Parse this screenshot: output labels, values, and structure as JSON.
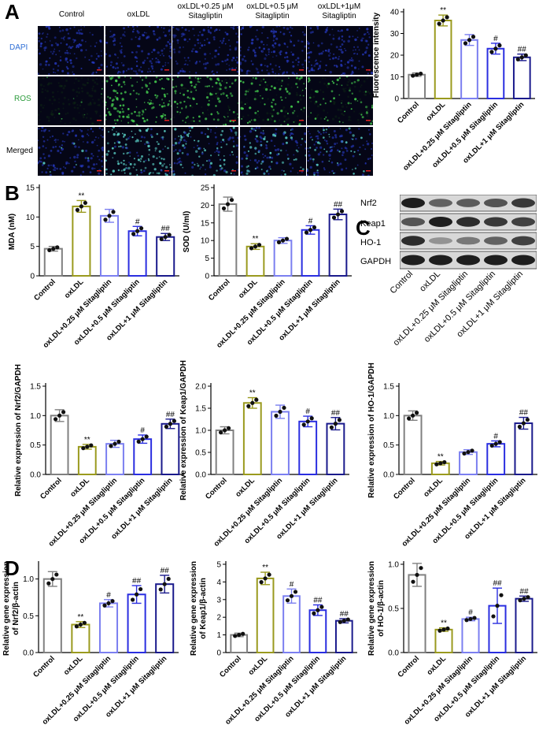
{
  "panels": {
    "A": "A",
    "B": "B",
    "C": "C",
    "D": "D"
  },
  "panelA": {
    "columns": [
      "Control",
      "oxLDL",
      "oxLDL+0.25 μM Sitagliptin",
      "oxLDL+0.5 μM Sitagliptin",
      "oxLDL+1μM Sitagliptin"
    ],
    "rows": [
      {
        "label": "DAPI",
        "color": "#2f6fd6"
      },
      {
        "label": "ROS",
        "color": "#2e9d3e"
      },
      {
        "label": "Merged",
        "color": "#000000"
      }
    ]
  },
  "panelC": {
    "bands": [
      "Nrf2",
      "Keap1",
      "HO-1",
      "GAPDH"
    ],
    "lanes": [
      "Control",
      "oxLDL",
      "oxLDL+0.25 μM Sitagliptin",
      "oxLDL+0.5 μM Sitagliptin",
      "oxLDL+1 μM Sitagliptin"
    ]
  },
  "colors": {
    "control": "#808080",
    "oxldl": "#9a9a1e",
    "s025": "#7b7ff0",
    "s05": "#2a2ee0",
    "s1": "#1a1a8c"
  },
  "chart_data": [
    {
      "id": "fluor",
      "type": "bar",
      "ylabel": "Fluorescence intensity",
      "ylim": [
        0,
        40
      ],
      "yticks": [
        0,
        10,
        20,
        30,
        40
      ],
      "categories": [
        "Control",
        "oxLDL",
        "oxLDL+0.25 μM Sitagliptin",
        "oxLDL+0.5 μM Sitagliptin",
        "oxLDL+1 μM Sitagliptin"
      ],
      "values": [
        11,
        36,
        27,
        23,
        19
      ],
      "errors": [
        0.8,
        2.5,
        2.5,
        2.5,
        1.5
      ],
      "annotations": [
        "",
        "**",
        "",
        "#",
        "##"
      ]
    },
    {
      "id": "mda",
      "type": "bar",
      "ylabel": "MDA (nM)",
      "ylim": [
        0,
        15
      ],
      "yticks": [
        0,
        5,
        10,
        15
      ],
      "categories": [
        "Control",
        "oxLDL",
        "oxLDL+0.25 μM Sitagliptin",
        "oxLDL+0.5 μM Sitagliptin",
        "oxLDL+1 μM Sitagliptin"
      ],
      "values": [
        4.6,
        11.8,
        10.2,
        7.6,
        6.6
      ],
      "errors": [
        0.4,
        1.0,
        1.1,
        0.8,
        0.6
      ],
      "annotations": [
        "",
        "**",
        "",
        "#",
        "##"
      ]
    },
    {
      "id": "sod",
      "type": "bar",
      "ylabel": "SOD (U/ml)",
      "ylim": [
        0,
        25
      ],
      "yticks": [
        0,
        5,
        10,
        15,
        20,
        25
      ],
      "categories": [
        "Control",
        "oxLDL",
        "oxLDL+0.25 μM Sitagliptin",
        "oxLDL+0.5 μM Sitagliptin",
        "oxLDL+1 μM Sitagliptin"
      ],
      "values": [
        20.3,
        8.3,
        10.0,
        13.0,
        17.4
      ],
      "errors": [
        2.0,
        0.8,
        0.8,
        1.2,
        1.5
      ],
      "annotations": [
        "",
        "**",
        "",
        "#",
        "##"
      ]
    },
    {
      "id": "nrf2p",
      "type": "bar",
      "ylabel": "Relative expression of Nrf2/GAPDH",
      "ylim": [
        0,
        1.5
      ],
      "yticks": [
        0.0,
        0.5,
        1.0,
        1.5
      ],
      "categories": [
        "Control",
        "oxLDL",
        "oxLDL+0.25 μM Sitagliptin",
        "oxLDL+0.5 μM Sitagliptin",
        "oxLDL+1 μM Sitagliptin"
      ],
      "values": [
        1.0,
        0.47,
        0.52,
        0.6,
        0.86
      ],
      "errors": [
        0.1,
        0.04,
        0.06,
        0.07,
        0.08
      ],
      "annotations": [
        "",
        "**",
        "",
        "#",
        "##"
      ]
    },
    {
      "id": "keap1p",
      "type": "bar",
      "ylabel": "Relative expression of Keap1/GAPDH",
      "ylim": [
        0,
        2.0
      ],
      "yticks": [
        0.0,
        0.5,
        1.0,
        1.5,
        2.0
      ],
      "categories": [
        "Control",
        "oxLDL",
        "oxLDL+0.25 μM Sitagliptin",
        "oxLDL+0.5 μM Sitagliptin",
        "oxLDL+1 μM Sitagliptin"
      ],
      "values": [
        1.0,
        1.62,
        1.42,
        1.2,
        1.15
      ],
      "errors": [
        0.08,
        0.12,
        0.15,
        0.12,
        0.14
      ],
      "annotations": [
        "",
        "**",
        "",
        "#",
        "##"
      ]
    },
    {
      "id": "ho1p",
      "type": "bar",
      "ylabel": "Relative expression of HO-1/GAPDH",
      "ylim": [
        0,
        1.5
      ],
      "yticks": [
        0.0,
        0.5,
        1.0,
        1.5
      ],
      "categories": [
        "Control",
        "oxLDL",
        "oxLDL+0.25 μM Sitagliptin",
        "oxLDL+0.5 μM Sitagliptin",
        "oxLDL+1 μM Sitagliptin"
      ],
      "values": [
        1.0,
        0.19,
        0.38,
        0.52,
        0.87
      ],
      "errors": [
        0.08,
        0.03,
        0.04,
        0.05,
        0.1
      ],
      "annotations": [
        "",
        "**",
        "",
        "#",
        "##"
      ]
    },
    {
      "id": "nrf2g",
      "type": "bar",
      "ylabel": "Relative gene expression of Nrf2/β-actin",
      "ylim": [
        0,
        1.2
      ],
      "yticks": [
        0.0,
        0.5,
        1.0
      ],
      "categories": [
        "Control",
        "oxLDL",
        "oxLDL+0.25 μM Sitagliptin",
        "oxLDL+0.5 μM Sitagliptin",
        "oxLDL+1 μM Sitagliptin"
      ],
      "values": [
        1.0,
        0.38,
        0.67,
        0.79,
        0.93
      ],
      "errors": [
        0.1,
        0.04,
        0.05,
        0.12,
        0.12
      ],
      "annotations": [
        "",
        "**",
        "#",
        "##",
        "##"
      ]
    },
    {
      "id": "keap1g",
      "type": "bar",
      "ylabel": "Relative gene expression of Keap1/β-actin",
      "ylim": [
        0,
        5
      ],
      "yticks": [
        0,
        1,
        2,
        3,
        4,
        5
      ],
      "categories": [
        "Control",
        "oxLDL",
        "oxLDL+0.25 μM Sitagliptin",
        "oxLDL+0.5 μM Sitagliptin",
        "oxLDL+1 μM Sitagliptin"
      ],
      "values": [
        1.0,
        4.2,
        3.2,
        2.4,
        1.8
      ],
      "errors": [
        0.1,
        0.35,
        0.4,
        0.3,
        0.12
      ],
      "annotations": [
        "",
        "**",
        "#",
        "##",
        "##"
      ]
    },
    {
      "id": "ho1g",
      "type": "bar",
      "ylabel": "Relative gene expression of HO-1/β-actin",
      "ylim": [
        0,
        1.0
      ],
      "yticks": [
        0.0,
        0.5,
        1.0
      ],
      "categories": [
        "Control",
        "oxLDL",
        "oxLDL+0.25 μM Sitagliptin",
        "oxLDL+0.5 μM Sitagliptin",
        "oxLDL+1 μM Sitagliptin"
      ],
      "values": [
        0.88,
        0.26,
        0.38,
        0.53,
        0.61
      ],
      "errors": [
        0.13,
        0.02,
        0.02,
        0.2,
        0.03
      ],
      "annotations": [
        "",
        "**",
        "#",
        "##",
        "##"
      ]
    }
  ]
}
